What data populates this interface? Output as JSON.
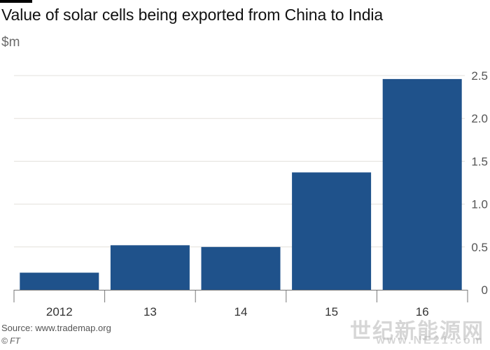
{
  "header": {
    "title": "Value of solar cells being exported from China to India",
    "unit": "$m"
  },
  "footer": {
    "source": "Source: www.trademap.org",
    "credit": "© FT"
  },
  "watermark": {
    "main": "世纪新能源网",
    "sub": "www.NE21.com"
  },
  "colors": {
    "bar": "#1f528b",
    "grid": "#e3e0dc",
    "axis": "#777777",
    "tick_text": "#555555"
  },
  "chart_data": {
    "type": "bar",
    "title": "Value of solar cells being exported from China to India",
    "ylabel": "$m",
    "categories": [
      "2012",
      "13",
      "14",
      "15",
      "16"
    ],
    "values": [
      0.2,
      0.52,
      0.5,
      1.37,
      2.46
    ],
    "ylim": [
      0,
      2.5
    ],
    "yticks": [
      "0",
      "0.5",
      "1.0",
      "1.5",
      "2.0",
      "2.5"
    ],
    "grid": true,
    "y_axis_side": "right"
  }
}
